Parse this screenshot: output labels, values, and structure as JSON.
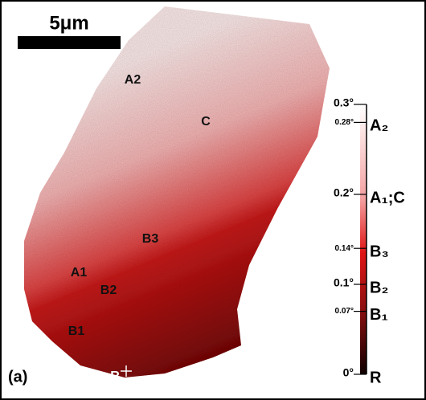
{
  "panel_label": "(a)",
  "scale_bar": {
    "label": "5μm"
  },
  "points": [
    "A2",
    "C",
    "B3",
    "A1",
    "B2",
    "B1",
    "R"
  ],
  "colorbar": {
    "range": [
      0,
      0.3
    ],
    "ticks": [
      {
        "value": 0.3,
        "label": "0.3°"
      },
      {
        "value": 0.28,
        "label": "0.28°",
        "marker": "A₂"
      },
      {
        "value": 0.2,
        "label": "0.2°",
        "marker": "A₁;C"
      },
      {
        "value": 0.14,
        "label": "0.14°",
        "marker": "B₃"
      },
      {
        "value": 0.1,
        "label": "0.1°",
        "marker": "B₂"
      },
      {
        "value": 0.07,
        "label": "0.07°",
        "marker": "B₁"
      },
      {
        "value": 0,
        "label": "0°",
        "marker": "R"
      }
    ]
  }
}
